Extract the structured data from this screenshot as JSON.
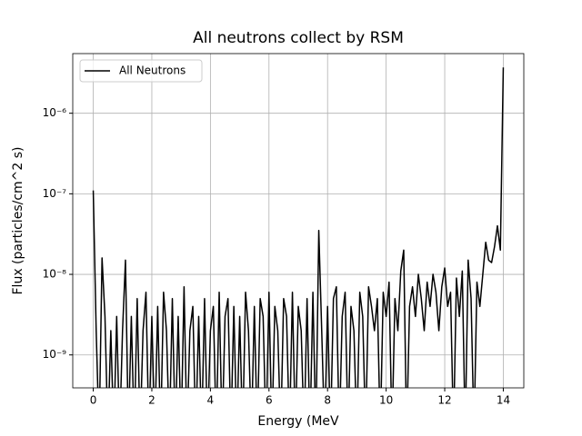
{
  "chart_data": {
    "type": "line",
    "title": "All neutrons collect by RSM",
    "x_label": "Energy (MeV",
    "y_label": "Flux (particles/cm^2 s)",
    "y_scale": "log",
    "grid": true,
    "legend": "upper left",
    "xlim": [
      -0.7,
      14.7
    ],
    "xticks": [
      0,
      2,
      4,
      6,
      8,
      10,
      12,
      14
    ],
    "ylim": [
      3.9e-10,
      5.5e-06
    ],
    "yticks": [
      {
        "value": 1e-09,
        "label": "10⁻⁹"
      },
      {
        "value": 1e-08,
        "label": "10⁻⁸"
      },
      {
        "value": 1e-07,
        "label": "10⁻⁷"
      },
      {
        "value": 1e-06,
        "label": "10⁻⁶"
      }
    ],
    "x": [
      0,
      0.1,
      0.2,
      0.3,
      0.4,
      0.5,
      0.6,
      0.7,
      0.8,
      0.9,
      1,
      1.1,
      1.2,
      1.3,
      1.4,
      1.5,
      1.6,
      1.7,
      1.8,
      1.9,
      2,
      2.1,
      2.2,
      2.3,
      2.4,
      2.5,
      2.6,
      2.7,
      2.8,
      2.9,
      3,
      3.1,
      3.2,
      3.3,
      3.4,
      3.5,
      3.6,
      3.7,
      3.8,
      3.9,
      4,
      4.1,
      4.2,
      4.3,
      4.4,
      4.5,
      4.6,
      4.7,
      4.8,
      4.9,
      5,
      5.1,
      5.2,
      5.3,
      5.4,
      5.5,
      5.6,
      5.7,
      5.8,
      5.9,
      6,
      6.1,
      6.2,
      6.3,
      6.4,
      6.5,
      6.6,
      6.7,
      6.8,
      6.9,
      7,
      7.1,
      7.2,
      7.3,
      7.4,
      7.5,
      7.6,
      7.7,
      7.8,
      7.9,
      8,
      8.1,
      8.2,
      8.3,
      8.4,
      8.5,
      8.6,
      8.7,
      8.8,
      8.9,
      9,
      9.1,
      9.2,
      9.3,
      9.4,
      9.5,
      9.6,
      9.7,
      9.8,
      9.9,
      10,
      10.1,
      10.2,
      10.3,
      10.4,
      10.5,
      10.6,
      10.7,
      10.8,
      10.9,
      11,
      11.1,
      11.2,
      11.3,
      11.4,
      11.5,
      11.6,
      11.7,
      11.8,
      11.9,
      12,
      12.1,
      12.2,
      12.3,
      12.4,
      12.5,
      12.6,
      12.7,
      12.8,
      12.9,
      13,
      13.1,
      13.2,
      13.3,
      13.4,
      13.5,
      13.6,
      13.7,
      13.8,
      13.9,
      14
    ],
    "series": [
      {
        "name": "All Neutrons",
        "color": "#000000",
        "values": [
          1.1e-07,
          2e-09,
          1e-10,
          1.6e-08,
          3e-09,
          1e-10,
          2e-09,
          1e-10,
          3e-09,
          1e-10,
          2e-09,
          1.5e-08,
          1e-10,
          3e-09,
          1e-10,
          5e-09,
          1e-10,
          2e-09,
          6e-09,
          1e-10,
          3e-09,
          1e-10,
          4e-09,
          1e-10,
          6e-09,
          2e-09,
          1e-10,
          5e-09,
          1e-10,
          3e-09,
          1e-10,
          7e-09,
          1e-10,
          2e-09,
          4e-09,
          1e-10,
          3e-09,
          1e-10,
          5e-09,
          1e-10,
          2e-09,
          4e-09,
          1e-10,
          6e-09,
          1e-10,
          3e-09,
          5e-09,
          1e-10,
          4e-09,
          1e-10,
          3e-09,
          1e-10,
          6e-09,
          2e-09,
          1e-10,
          4e-09,
          1e-10,
          5e-09,
          3e-09,
          1e-10,
          6e-09,
          1e-10,
          4e-09,
          2e-09,
          1e-10,
          5e-09,
          3e-09,
          1e-10,
          6e-09,
          1e-10,
          4e-09,
          2e-09,
          1e-10,
          5e-09,
          1e-10,
          6e-09,
          1e-10,
          3.5e-08,
          2e-09,
          1e-10,
          4e-09,
          1e-10,
          5e-09,
          7e-09,
          1e-10,
          3e-09,
          6e-09,
          1e-10,
          4e-09,
          2e-09,
          1e-10,
          6e-09,
          3e-09,
          1e-10,
          7e-09,
          4e-09,
          2e-09,
          5e-09,
          1e-10,
          6e-09,
          3e-09,
          8e-09,
          1e-10,
          5e-09,
          2e-09,
          1.1e-08,
          2e-08,
          1e-10,
          4e-09,
          7e-09,
          3e-09,
          1e-08,
          5e-09,
          2e-09,
          8e-09,
          4e-09,
          1e-08,
          6e-09,
          2e-09,
          7e-09,
          1.2e-08,
          4e-09,
          6e-09,
          1e-10,
          9e-09,
          3e-09,
          1.1e-08,
          1e-10,
          1.5e-08,
          5e-09,
          1e-10,
          8e-09,
          4e-09,
          1e-08,
          2.5e-08,
          1.5e-08,
          1.4e-08,
          2.2e-08,
          4e-08,
          2e-08,
          3.7e-06
        ]
      }
    ]
  }
}
